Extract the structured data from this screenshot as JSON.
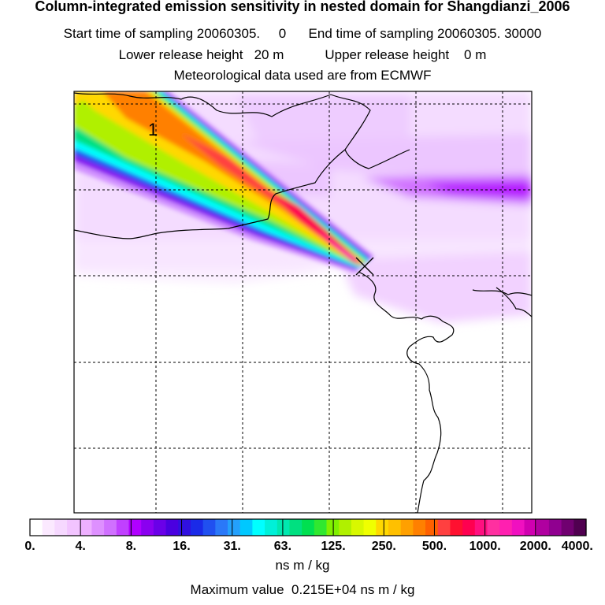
{
  "header": {
    "title": "Column-integrated emission sensitivity in nested domain for Shangdianzi_2006",
    "line1": "Start time of sampling 20060305.     0      End time of sampling 20060305. 30000",
    "line2": "Lower release height   20 m           Upper release height    0 m",
    "line3": "Meteorological data used are from ECMWF"
  },
  "map": {
    "plume_label": "1",
    "receptor_marker": "station-cross-marker"
  },
  "colorbar": {
    "tick_labels": [
      "0.",
      "4.",
      "8.",
      "16.",
      "31.",
      "63.",
      "125.",
      "250.",
      "500.",
      "1000.",
      "2000.",
      "4000."
    ],
    "colors": [
      "#ffffff",
      "#fbe9ff",
      "#f6d8ff",
      "#f2c4ff",
      "#eeb0ff",
      "#de90ff",
      "#d070ff",
      "#c040ff",
      "#b000ff",
      "#8a00f0",
      "#6a00e8",
      "#4a00e0",
      "#3010e0",
      "#1a2ae8",
      "#2050f0",
      "#2a78f8",
      "#24a0fc",
      "#00c8ff",
      "#00ffff",
      "#00f0d8",
      "#00e8b0",
      "#00e080",
      "#00e050",
      "#30e830",
      "#80f000",
      "#b0f000",
      "#d8f800",
      "#f0ff00",
      "#ffd800",
      "#ffc000",
      "#ffa000",
      "#ff8000",
      "#ff6000",
      "#ff4040",
      "#ff1030",
      "#ff0050",
      "#ff1080",
      "#ff30a0",
      "#ff20b0",
      "#f010c0",
      "#d000b0",
      "#b000a0",
      "#900090",
      "#700070",
      "#500050"
    ],
    "units": "ns m / kg"
  },
  "footer": {
    "max_value": "Maximum value  0.215E+04 ns m / kg"
  }
}
